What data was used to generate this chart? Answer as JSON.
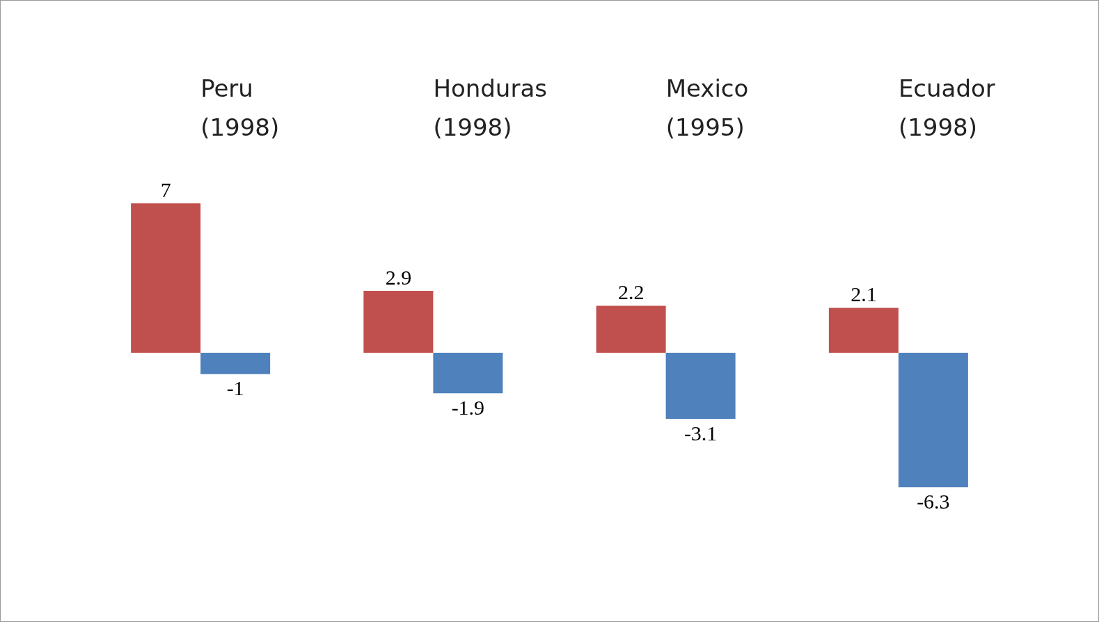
{
  "chart_data": {
    "type": "bar",
    "categories": [
      "Peru (1998)",
      "Honduras (1998)",
      "Mexico (1995)",
      "Ecuador (1998)"
    ],
    "series": [
      {
        "color": "#c0504d",
        "values": [
          7,
          2.9,
          2.2,
          2.1
        ]
      },
      {
        "color": "#4f81bd",
        "values": [
          -1,
          -1.9,
          -3.1,
          -6.3
        ]
      }
    ],
    "data_labels": true
  }
}
